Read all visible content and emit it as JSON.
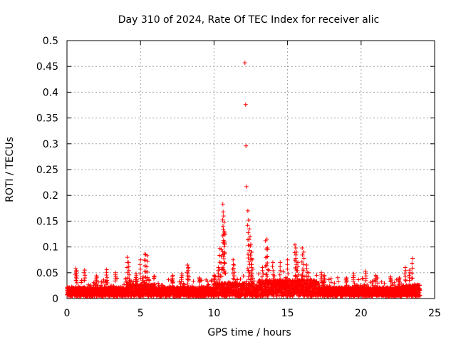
{
  "chart_data": {
    "type": "scatter",
    "title": "Day 310 of 2024, Rate Of TEC Index for receiver alic",
    "xlabel": "GPS time / hours",
    "ylabel": "ROTI / TECUs",
    "xlim": [
      0,
      25
    ],
    "ylim": [
      0,
      0.5
    ],
    "xticks": [
      0,
      5,
      10,
      15,
      20,
      25
    ],
    "yticks": [
      0,
      0.05,
      0.1,
      0.15,
      0.2,
      0.25,
      0.3,
      0.35,
      0.4,
      0.45,
      0.5
    ],
    "xtick_labels": [
      "0",
      "5",
      "10",
      "15",
      "20",
      "25"
    ],
    "ytick_labels": [
      "0",
      "0.05",
      "0.1",
      "0.15",
      "0.2",
      "0.25",
      "0.3",
      "0.35",
      "0.4",
      "0.45",
      "0.5"
    ],
    "grid": true,
    "marker": "+",
    "color": "#ff0000",
    "baseline_note": "dense band of points 0-24 h with ROTI mostly 0.005-0.03 TECUs",
    "series": [
      {
        "name": "ROTI",
        "x": [
          0.6,
          0.65,
          1.2,
          2.0,
          2.7,
          3.3,
          4.1,
          4.2,
          4.7,
          5.0,
          5.3,
          5.35,
          5.45,
          7.2,
          7.8,
          8.2,
          8.25,
          9.0,
          10.0,
          10.3,
          10.4,
          10.5,
          10.6,
          10.62,
          10.65,
          10.68,
          10.7,
          10.72,
          10.75,
          11.3,
          11.35,
          12.1,
          12.15,
          12.17,
          12.2,
          12.3,
          12.35,
          12.4,
          12.45,
          12.5,
          12.55,
          12.6,
          13.3,
          13.5,
          13.6,
          13.65,
          14.0,
          14.5,
          15.0,
          15.5,
          15.55,
          15.6,
          15.7,
          16.0,
          16.1,
          16.3,
          17.3,
          17.5,
          19.0,
          19.5,
          20.3,
          21.0,
          22.0,
          22.6,
          23.0,
          23.3,
          23.5
        ],
        "y": [
          0.058,
          0.054,
          0.055,
          0.044,
          0.056,
          0.05,
          0.08,
          0.07,
          0.048,
          0.075,
          0.086,
          0.085,
          0.083,
          0.045,
          0.048,
          0.065,
          0.06,
          0.04,
          0.045,
          0.06,
          0.097,
          0.095,
          0.183,
          0.168,
          0.16,
          0.148,
          0.13,
          0.127,
          0.124,
          0.075,
          0.065,
          0.457,
          0.376,
          0.296,
          0.217,
          0.17,
          0.152,
          0.135,
          0.12,
          0.105,
          0.09,
          0.075,
          0.06,
          0.112,
          0.115,
          0.095,
          0.07,
          0.07,
          0.075,
          0.104,
          0.098,
          0.09,
          0.07,
          0.098,
          0.09,
          0.065,
          0.05,
          0.045,
          0.04,
          0.048,
          0.053,
          0.045,
          0.042,
          0.04,
          0.06,
          0.055,
          0.078
        ]
      }
    ]
  }
}
